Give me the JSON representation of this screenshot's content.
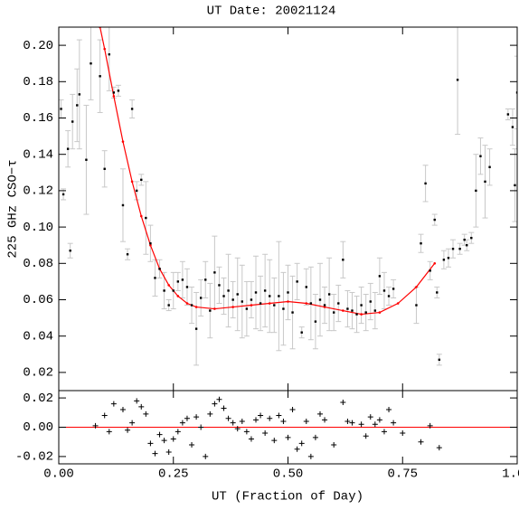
{
  "chart_data": [
    {
      "type": "scatter",
      "title": "UT Date: 20021124",
      "y_label": "225 GHz CSO−τ",
      "color": "#000000",
      "error_color": "#c8c8c8",
      "x": [
        0.005,
        0.01,
        0.02,
        0.025,
        0.03,
        0.04,
        0.045,
        0.06,
        0.07,
        0.09,
        0.1,
        0.11,
        0.12,
        0.13,
        0.14,
        0.15,
        0.16,
        0.17,
        0.18,
        0.19,
        0.2,
        0.21,
        0.22,
        0.23,
        0.24,
        0.25,
        0.26,
        0.27,
        0.28,
        0.29,
        0.3,
        0.31,
        0.32,
        0.33,
        0.34,
        0.35,
        0.36,
        0.37,
        0.38,
        0.39,
        0.4,
        0.41,
        0.42,
        0.43,
        0.44,
        0.45,
        0.46,
        0.47,
        0.48,
        0.49,
        0.5,
        0.51,
        0.52,
        0.53,
        0.54,
        0.55,
        0.56,
        0.57,
        0.58,
        0.59,
        0.6,
        0.61,
        0.62,
        0.63,
        0.64,
        0.65,
        0.66,
        0.67,
        0.68,
        0.69,
        0.7,
        0.71,
        0.72,
        0.73,
        0.78,
        0.79,
        0.8,
        0.81,
        0.82,
        0.825,
        0.83,
        0.84,
        0.85,
        0.86,
        0.87,
        0.875,
        0.885,
        0.89,
        0.9,
        0.91,
        0.92,
        0.93,
        0.94,
        0.98,
        0.99,
        0.995,
        1.0
      ],
      "values": [
        0.165,
        0.118,
        0.143,
        0.087,
        0.158,
        0.167,
        0.173,
        0.137,
        0.19,
        0.183,
        0.132,
        0.195,
        0.174,
        0.175,
        0.112,
        0.085,
        0.165,
        0.12,
        0.126,
        0.105,
        0.091,
        0.072,
        0.077,
        0.065,
        0.057,
        0.065,
        0.07,
        0.071,
        0.067,
        0.057,
        0.044,
        0.061,
        0.071,
        0.054,
        0.075,
        0.068,
        0.062,
        0.065,
        0.06,
        0.063,
        0.059,
        0.055,
        0.06,
        0.064,
        0.058,
        0.065,
        0.062,
        0.057,
        0.062,
        0.055,
        0.064,
        0.053,
        0.07,
        0.042,
        0.067,
        0.058,
        0.048,
        0.06,
        0.057,
        0.063,
        0.053,
        0.058,
        0.082,
        0.055,
        0.054,
        0.052,
        0.057,
        0.053,
        0.059,
        0.054,
        0.073,
        0.065,
        0.062,
        0.066,
        0.057,
        0.091,
        0.124,
        0.076,
        0.104,
        0.064,
        0.027,
        0.082,
        0.083,
        0.088,
        0.181,
        0.088,
        0.093,
        0.09,
        0.094,
        0.12,
        0.139,
        0.125,
        0.133,
        0.162,
        0.155,
        0.123,
        0.174
      ],
      "errors": [
        0.005,
        0.003,
        0.01,
        0.004,
        0.015,
        0.02,
        0.03,
        0.03,
        0.02,
        0.02,
        0.01,
        0.02,
        0.003,
        0.003,
        0.02,
        0.003,
        0.005,
        0.005,
        0.003,
        0.02,
        0.01,
        0.01,
        0.005,
        0.01,
        0.003,
        0.01,
        0.005,
        0.01,
        0.01,
        0.01,
        0.02,
        0.01,
        0.01,
        0.015,
        0.02,
        0.01,
        0.01,
        0.02,
        0.01,
        0.02,
        0.02,
        0.015,
        0.01,
        0.02,
        0.015,
        0.02,
        0.02,
        0.015,
        0.03,
        0.02,
        0.015,
        0.02,
        0.01,
        0.003,
        0.01,
        0.02,
        0.015,
        0.02,
        0.01,
        0.02,
        0.01,
        0.01,
        0.01,
        0.01,
        0.01,
        0.01,
        0.01,
        0.01,
        0.01,
        0.01,
        0.01,
        0.01,
        0.005,
        0.005,
        0.01,
        0.005,
        0.01,
        0.005,
        0.003,
        0.003,
        0.003,
        0.005,
        0.005,
        0.005,
        0.03,
        0.003,
        0.003,
        0.003,
        0.003,
        0.02,
        0.01,
        0.02,
        0.01,
        0.003,
        0.01,
        0.02,
        0.02
      ],
      "fit": {
        "color": "#ff0000",
        "x": [
          0.09,
          0.1,
          0.12,
          0.14,
          0.16,
          0.18,
          0.2,
          0.22,
          0.24,
          0.26,
          0.28,
          0.3,
          0.34,
          0.38,
          0.42,
          0.46,
          0.5,
          0.54,
          0.58,
          0.62,
          0.66,
          0.7,
          0.74,
          0.78,
          0.82
        ],
        "values": [
          0.21,
          0.198,
          0.172,
          0.147,
          0.125,
          0.106,
          0.09,
          0.077,
          0.068,
          0.062,
          0.058,
          0.056,
          0.055,
          0.056,
          0.057,
          0.058,
          0.059,
          0.058,
          0.056,
          0.054,
          0.052,
          0.053,
          0.058,
          0.067,
          0.08
        ]
      },
      "xlim": [
        0,
        1
      ],
      "ylim": [
        0.01,
        0.21
      ],
      "xticks": [
        0,
        0.25,
        0.5,
        0.75,
        1
      ],
      "yticks": [
        {
          "value": 0.02,
          "label": "0.02"
        },
        {
          "value": 0.04,
          "label": "0.04"
        },
        {
          "value": 0.06,
          "label": "0.06"
        },
        {
          "value": 0.08,
          "label": "0.08"
        },
        {
          "value": 0.1,
          "label": "0.10"
        },
        {
          "value": 0.12,
          "label": "0.12"
        },
        {
          "value": 0.14,
          "label": "0.14"
        },
        {
          "value": 0.16,
          "label": "0.16"
        },
        {
          "value": 0.18,
          "label": "0.18"
        },
        {
          "value": 0.2,
          "label": "0.20"
        }
      ]
    },
    {
      "type": "scatter",
      "x_label": "UT (Fraction of Day)",
      "marker": "+",
      "color": "#000000",
      "reference_line": {
        "value": 0,
        "color": "#ff0000"
      },
      "x": [
        0.08,
        0.1,
        0.11,
        0.12,
        0.14,
        0.15,
        0.16,
        0.17,
        0.18,
        0.19,
        0.2,
        0.21,
        0.22,
        0.23,
        0.24,
        0.25,
        0.26,
        0.27,
        0.28,
        0.29,
        0.3,
        0.31,
        0.32,
        0.33,
        0.34,
        0.35,
        0.36,
        0.37,
        0.38,
        0.39,
        0.4,
        0.41,
        0.42,
        0.43,
        0.44,
        0.45,
        0.46,
        0.47,
        0.48,
        0.49,
        0.5,
        0.51,
        0.52,
        0.53,
        0.54,
        0.55,
        0.56,
        0.57,
        0.58,
        0.6,
        0.62,
        0.63,
        0.64,
        0.66,
        0.67,
        0.68,
        0.69,
        0.7,
        0.71,
        0.72,
        0.73,
        0.75,
        0.79,
        0.81,
        0.83
      ],
      "values": [
        0.001,
        0.008,
        -0.003,
        0.016,
        0.012,
        -0.002,
        0.003,
        0.018,
        0.014,
        0.009,
        -0.011,
        -0.018,
        -0.005,
        -0.009,
        -0.017,
        -0.008,
        -0.003,
        0.003,
        0.006,
        -0.012,
        0.007,
        0.0,
        -0.02,
        0.009,
        0.016,
        0.019,
        0.013,
        0.006,
        0.003,
        -0.001,
        0.004,
        -0.003,
        -0.008,
        0.005,
        0.008,
        -0.004,
        0.006,
        -0.009,
        0.008,
        0.004,
        -0.007,
        0.012,
        -0.015,
        -0.011,
        0.004,
        -0.02,
        -0.007,
        0.009,
        0.005,
        -0.012,
        0.017,
        0.004,
        0.003,
        0.002,
        -0.006,
        0.007,
        0.002,
        0.005,
        -0.003,
        0.012,
        0.003,
        -0.004,
        -0.01,
        0.001,
        -0.014
      ],
      "xlim": [
        0,
        1
      ],
      "ylim": [
        -0.025,
        0.025
      ],
      "xticks": [
        {
          "value": 0,
          "label": "0.00"
        },
        {
          "value": 0.25,
          "label": "0.25"
        },
        {
          "value": 0.5,
          "label": "0.50"
        },
        {
          "value": 0.75,
          "label": "0.75"
        },
        {
          "value": 1,
          "label": "1.00"
        }
      ],
      "yticks": [
        {
          "value": -0.02,
          "label": "-0.02"
        },
        {
          "value": 0,
          "label": "0.00"
        },
        {
          "value": 0.02,
          "label": "0.02"
        }
      ]
    }
  ]
}
